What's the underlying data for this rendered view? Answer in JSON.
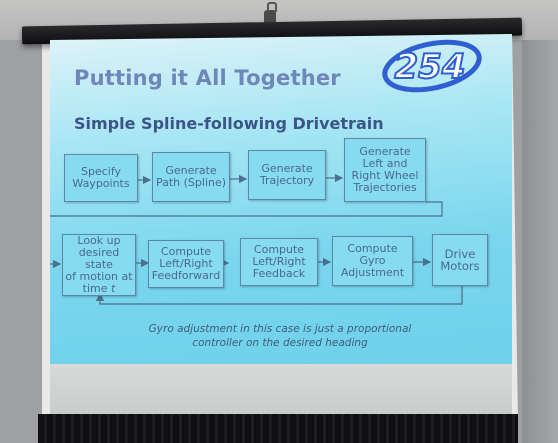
{
  "slide": {
    "title": "Putting it All Together",
    "subtitle": "Simple Spline-following Drivetrain",
    "logo_text": "254",
    "caption": "Gyro adjustment in this case is just a proportional\ncontroller on the desired heading"
  },
  "flow_row1": [
    "Specify\nWaypoints",
    "Generate\nPath (Spline)",
    "Generate\nTrajectory",
    "Generate\nLeft and\nRight Wheel\nTrajectories"
  ],
  "flow_row2": {
    "lookup_prefix": "Look up\ndesired state\nof motion at\ntime ",
    "lookup_var": "t",
    "steps": [
      "Compute\nLeft/Right\nFeedforward",
      "Compute\nLeft/Right\nFeedback",
      "Compute\nGyro\nAdjustment",
      "Drive\nMotors"
    ]
  },
  "colors": {
    "slide_gradient_top": "#dff3f8",
    "slide_gradient_bottom": "#6fd1ea",
    "box_fill": "#86dbf0",
    "title": "#6f86b8",
    "subtitle": "#3c5488",
    "logo": "#2f5fd0"
  }
}
